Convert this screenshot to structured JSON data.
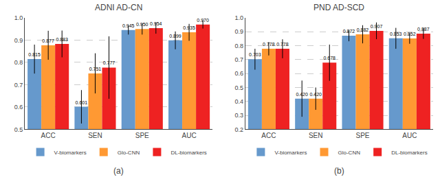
{
  "chart_data": [
    {
      "type": "bar",
      "title": "ADNI AD-CN",
      "subtitle": "(a)",
      "categories": [
        "ACC",
        "SEN",
        "SPE",
        "AUC"
      ],
      "series": [
        {
          "name": "V-biomarkers",
          "color": "#6699CC",
          "values": [
            0.815,
            0.601,
            0.945,
            0.899
          ],
          "value_labels": [
            "0.815",
            "0.601",
            "0.945",
            "0.899"
          ],
          "errors": [
            0.065,
            0.075,
            0.02,
            0.04
          ]
        },
        {
          "name": "Glo-CNN",
          "color": "#FF9933",
          "values": [
            0.877,
            0.751,
            0.95,
            0.935
          ],
          "value_labels": [
            "0.877",
            "0.751",
            "0.950",
            "0.935"
          ],
          "errors": [
            0.065,
            0.09,
            0.025,
            0.038
          ]
        },
        {
          "name": "DL-biomarkers",
          "color": "#EE2222",
          "values": [
            0.883,
            0.777,
            0.954,
            0.97
          ],
          "value_labels": [
            "0.883",
            "0.777",
            "0.954",
            "0.970"
          ],
          "errors": [
            0.06,
            0.14,
            0.025,
            0.018
          ]
        }
      ],
      "ylim": [
        0.5,
        1.0
      ],
      "yticks": [
        0.5,
        0.6,
        0.7,
        0.8,
        0.9,
        {
          "value": 1.0,
          "label": "1.0"
        }
      ],
      "grid": true,
      "legend": "bottom",
      "data_labels": true
    },
    {
      "type": "bar",
      "title": "PND AD-SCD",
      "subtitle": "(b)",
      "categories": [
        "ACC",
        "SEN",
        "SPE",
        "AUC"
      ],
      "series": [
        {
          "name": "V-biomarkers",
          "color": "#6699CC",
          "values": [
            0.703,
            0.42,
            0.872,
            0.853
          ],
          "value_labels": [
            "0.703",
            "0.420",
            "0.872",
            "0.853"
          ],
          "errors": [
            0.075,
            0.13,
            0.04,
            0.075
          ]
        },
        {
          "name": "Glo-CNN",
          "color": "#FF9933",
          "values": [
            0.778,
            0.42,
            0.882,
            0.852
          ],
          "value_labels": [
            "0.778",
            "0.420",
            "0.882",
            "0.852"
          ],
          "errors": [
            0.048,
            0.08,
            0.065,
            0.038
          ]
        },
        {
          "name": "DL-biomarkers",
          "color": "#EE2222",
          "values": [
            0.778,
            0.678,
            0.907,
            0.887
          ],
          "value_labels": [
            "0.778",
            "0.678",
            "0.907",
            "0.887"
          ],
          "errors": [
            0.068,
            0.13,
            0.06,
            0.038
          ]
        }
      ],
      "ylim": [
        0.2,
        1.0
      ],
      "yticks": [
        0.2,
        0.3,
        0.4,
        0.5,
        0.6,
        0.7,
        0.8,
        0.9,
        {
          "value": 1.0,
          "label": "1.0"
        }
      ],
      "grid": true,
      "legend": "bottom",
      "data_labels": true
    }
  ]
}
